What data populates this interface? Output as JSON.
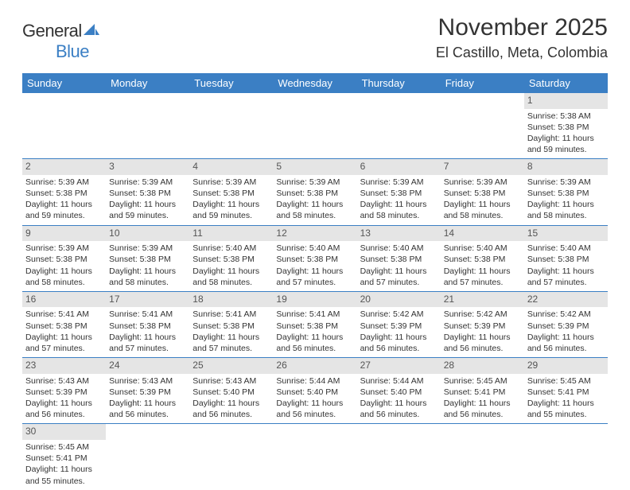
{
  "logo": {
    "text1": "General",
    "text2": "Blue"
  },
  "header": {
    "title": "November 2025",
    "location": "El Castillo, Meta, Colombia"
  },
  "colors": {
    "header_bg": "#3b7fc4",
    "daynum_bg": "#e5e5e5",
    "text": "#333333"
  },
  "day_labels": [
    "Sunday",
    "Monday",
    "Tuesday",
    "Wednesday",
    "Thursday",
    "Friday",
    "Saturday"
  ],
  "weeks": [
    [
      null,
      null,
      null,
      null,
      null,
      null,
      {
        "n": "1",
        "sr": "Sunrise: 5:38 AM",
        "ss": "Sunset: 5:38 PM",
        "dl": "Daylight: 11 hours and 59 minutes."
      }
    ],
    [
      {
        "n": "2",
        "sr": "Sunrise: 5:39 AM",
        "ss": "Sunset: 5:38 PM",
        "dl": "Daylight: 11 hours and 59 minutes."
      },
      {
        "n": "3",
        "sr": "Sunrise: 5:39 AM",
        "ss": "Sunset: 5:38 PM",
        "dl": "Daylight: 11 hours and 59 minutes."
      },
      {
        "n": "4",
        "sr": "Sunrise: 5:39 AM",
        "ss": "Sunset: 5:38 PM",
        "dl": "Daylight: 11 hours and 59 minutes."
      },
      {
        "n": "5",
        "sr": "Sunrise: 5:39 AM",
        "ss": "Sunset: 5:38 PM",
        "dl": "Daylight: 11 hours and 58 minutes."
      },
      {
        "n": "6",
        "sr": "Sunrise: 5:39 AM",
        "ss": "Sunset: 5:38 PM",
        "dl": "Daylight: 11 hours and 58 minutes."
      },
      {
        "n": "7",
        "sr": "Sunrise: 5:39 AM",
        "ss": "Sunset: 5:38 PM",
        "dl": "Daylight: 11 hours and 58 minutes."
      },
      {
        "n": "8",
        "sr": "Sunrise: 5:39 AM",
        "ss": "Sunset: 5:38 PM",
        "dl": "Daylight: 11 hours and 58 minutes."
      }
    ],
    [
      {
        "n": "9",
        "sr": "Sunrise: 5:39 AM",
        "ss": "Sunset: 5:38 PM",
        "dl": "Daylight: 11 hours and 58 minutes."
      },
      {
        "n": "10",
        "sr": "Sunrise: 5:39 AM",
        "ss": "Sunset: 5:38 PM",
        "dl": "Daylight: 11 hours and 58 minutes."
      },
      {
        "n": "11",
        "sr": "Sunrise: 5:40 AM",
        "ss": "Sunset: 5:38 PM",
        "dl": "Daylight: 11 hours and 58 minutes."
      },
      {
        "n": "12",
        "sr": "Sunrise: 5:40 AM",
        "ss": "Sunset: 5:38 PM",
        "dl": "Daylight: 11 hours and 57 minutes."
      },
      {
        "n": "13",
        "sr": "Sunrise: 5:40 AM",
        "ss": "Sunset: 5:38 PM",
        "dl": "Daylight: 11 hours and 57 minutes."
      },
      {
        "n": "14",
        "sr": "Sunrise: 5:40 AM",
        "ss": "Sunset: 5:38 PM",
        "dl": "Daylight: 11 hours and 57 minutes."
      },
      {
        "n": "15",
        "sr": "Sunrise: 5:40 AM",
        "ss": "Sunset: 5:38 PM",
        "dl": "Daylight: 11 hours and 57 minutes."
      }
    ],
    [
      {
        "n": "16",
        "sr": "Sunrise: 5:41 AM",
        "ss": "Sunset: 5:38 PM",
        "dl": "Daylight: 11 hours and 57 minutes."
      },
      {
        "n": "17",
        "sr": "Sunrise: 5:41 AM",
        "ss": "Sunset: 5:38 PM",
        "dl": "Daylight: 11 hours and 57 minutes."
      },
      {
        "n": "18",
        "sr": "Sunrise: 5:41 AM",
        "ss": "Sunset: 5:38 PM",
        "dl": "Daylight: 11 hours and 57 minutes."
      },
      {
        "n": "19",
        "sr": "Sunrise: 5:41 AM",
        "ss": "Sunset: 5:38 PM",
        "dl": "Daylight: 11 hours and 56 minutes."
      },
      {
        "n": "20",
        "sr": "Sunrise: 5:42 AM",
        "ss": "Sunset: 5:39 PM",
        "dl": "Daylight: 11 hours and 56 minutes."
      },
      {
        "n": "21",
        "sr": "Sunrise: 5:42 AM",
        "ss": "Sunset: 5:39 PM",
        "dl": "Daylight: 11 hours and 56 minutes."
      },
      {
        "n": "22",
        "sr": "Sunrise: 5:42 AM",
        "ss": "Sunset: 5:39 PM",
        "dl": "Daylight: 11 hours and 56 minutes."
      }
    ],
    [
      {
        "n": "23",
        "sr": "Sunrise: 5:43 AM",
        "ss": "Sunset: 5:39 PM",
        "dl": "Daylight: 11 hours and 56 minutes."
      },
      {
        "n": "24",
        "sr": "Sunrise: 5:43 AM",
        "ss": "Sunset: 5:39 PM",
        "dl": "Daylight: 11 hours and 56 minutes."
      },
      {
        "n": "25",
        "sr": "Sunrise: 5:43 AM",
        "ss": "Sunset: 5:40 PM",
        "dl": "Daylight: 11 hours and 56 minutes."
      },
      {
        "n": "26",
        "sr": "Sunrise: 5:44 AM",
        "ss": "Sunset: 5:40 PM",
        "dl": "Daylight: 11 hours and 56 minutes."
      },
      {
        "n": "27",
        "sr": "Sunrise: 5:44 AM",
        "ss": "Sunset: 5:40 PM",
        "dl": "Daylight: 11 hours and 56 minutes."
      },
      {
        "n": "28",
        "sr": "Sunrise: 5:45 AM",
        "ss": "Sunset: 5:41 PM",
        "dl": "Daylight: 11 hours and 56 minutes."
      },
      {
        "n": "29",
        "sr": "Sunrise: 5:45 AM",
        "ss": "Sunset: 5:41 PM",
        "dl": "Daylight: 11 hours and 55 minutes."
      }
    ],
    [
      {
        "n": "30",
        "sr": "Sunrise: 5:45 AM",
        "ss": "Sunset: 5:41 PM",
        "dl": "Daylight: 11 hours and 55 minutes."
      },
      null,
      null,
      null,
      null,
      null,
      null
    ]
  ]
}
